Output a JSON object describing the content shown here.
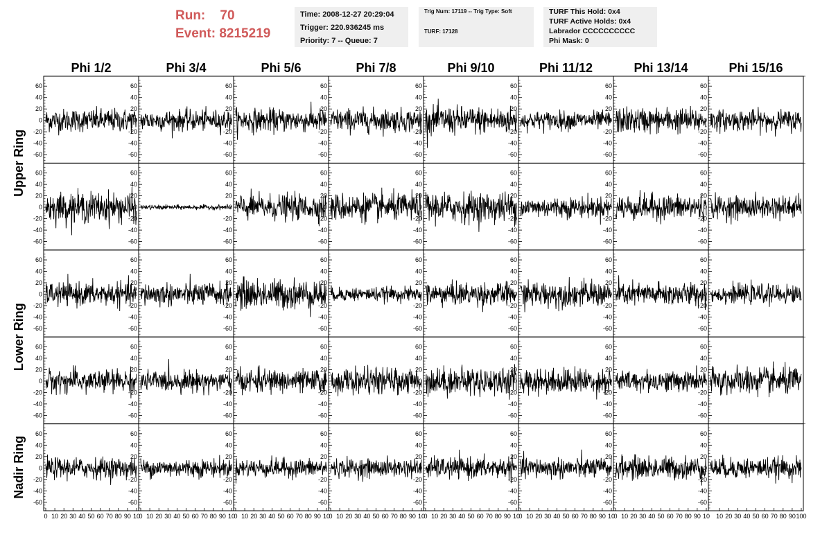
{
  "header": {
    "run_label": "Run:",
    "run_value": "70",
    "event_label": "Event:",
    "event_value": "8215219"
  },
  "info_box_1": {
    "time": "Time: 2008-12-27 20:29:04",
    "trigger": "Trigger: 220.936245 ms",
    "priority": "Priority: 7 -- Queue: 7"
  },
  "info_box_2": {
    "trig": "Trig Num: 17119 -- Trig Type: Soft",
    "turf": "TURF: 17128"
  },
  "info_box_3": {
    "hold": "TURF This Hold: 0x4",
    "active": "TURF Active Holds: 0x4",
    "labrador": "Labrador CCCCCCCCCC",
    "phimask": "Phi Mask: 0"
  },
  "colors": {
    "header_red": "#d05a5a",
    "box_bg": "#efefef",
    "trace": "#000000"
  },
  "chart_data": {
    "type": "line",
    "columns": [
      "Phi 1/2",
      "Phi 3/4",
      "Phi 5/6",
      "Phi 7/8",
      "Phi 9/10",
      "Phi 11/12",
      "Phi 13/14",
      "Phi 15/16"
    ],
    "row_groups": [
      {
        "label": "Upper Ring",
        "rows": [
          0,
          1
        ]
      },
      {
        "label": "Lower Ring",
        "rows": [
          2,
          3
        ]
      },
      {
        "label": "Nadir Ring",
        "rows": [
          4
        ]
      }
    ],
    "y_ticks": [
      60,
      40,
      20,
      0,
      -20,
      -40,
      -60
    ],
    "x_ticks_per_column": [
      "0",
      "10",
      "20",
      "30",
      "40",
      "50",
      "60",
      "70",
      "80",
      "90",
      "10"
    ],
    "x_ticks_last_column": [
      "10",
      "20",
      "30",
      "40",
      "50",
      "60",
      "70",
      "80",
      "90",
      "100"
    ],
    "ylim": [
      -70,
      70
    ],
    "xlim": [
      0,
      100
    ],
    "amplitude_rms": [
      [
        10,
        9,
        10,
        10,
        12,
        8,
        11,
        9
      ],
      [
        13,
        2,
        11,
        12,
        13,
        9,
        11,
        10
      ],
      [
        10,
        10,
        13,
        6,
        10,
        11,
        10,
        8
      ],
      [
        10,
        9,
        10,
        11,
        12,
        11,
        9,
        12
      ],
      [
        9,
        8,
        8,
        8,
        9,
        9,
        10,
        9
      ]
    ]
  }
}
